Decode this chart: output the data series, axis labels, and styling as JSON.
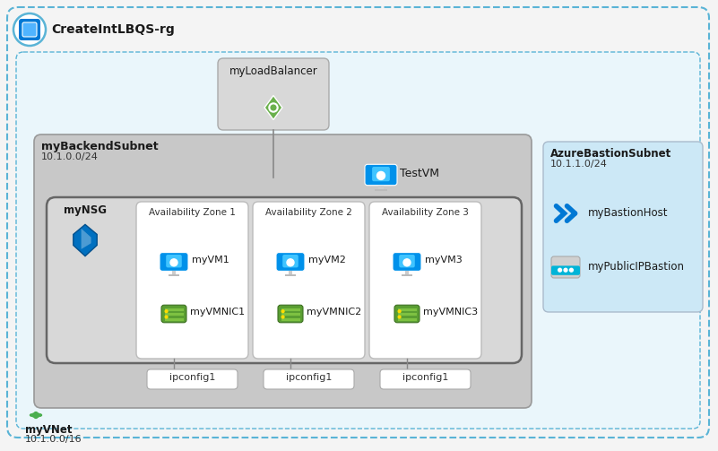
{
  "resource_group_label": "CreateIntLBQS-rg",
  "vnet_label": "myVNet",
  "vnet_ip": "10.1.0.0/16",
  "backend_subnet_label": "myBackendSubnet",
  "backend_subnet_ip": "10.1.0.0/24",
  "bastion_subnet_label": "AzureBastionSubnet",
  "bastion_subnet_ip": "10.1.1.0/24",
  "lb_label": "myLoadBalancer",
  "testvm_label": "TestVM",
  "nsg_label": "myNSG",
  "bastion_host_label": "myBastionHost",
  "public_ip_bastion_label": "myPublicIPBastion",
  "az_labels": [
    "Availability Zone 1",
    "Availability Zone 2",
    "Availability Zone 3"
  ],
  "vm_labels": [
    "myVM1",
    "myVM2",
    "myVM3"
  ],
  "nic_labels": [
    "myVMNIC1",
    "myVMNIC2",
    "myVMNIC3"
  ],
  "ipconfig_label": "ipconfig1",
  "bg_fig": "#f4f4f4",
  "bg_vnet": "#eaf6fb",
  "bg_backend": "#c8c8c8",
  "bg_inner": "#d4d4d4",
  "bg_az": "#f5f5f5",
  "bg_bastion": "#cce8f6",
  "bg_lb_box": "#d8d8d8",
  "color_rg_border": "#5ab4d6",
  "color_vnet_border": "#5ab4d6",
  "color_lb_green": "#6ab04c",
  "color_vm_blue": "#0091ea",
  "color_nic_green": "#5a9e32",
  "color_nsg_blue": "#0070c0",
  "color_bastion_blue": "#0078d4",
  "color_vnet_green": "#4caf50"
}
